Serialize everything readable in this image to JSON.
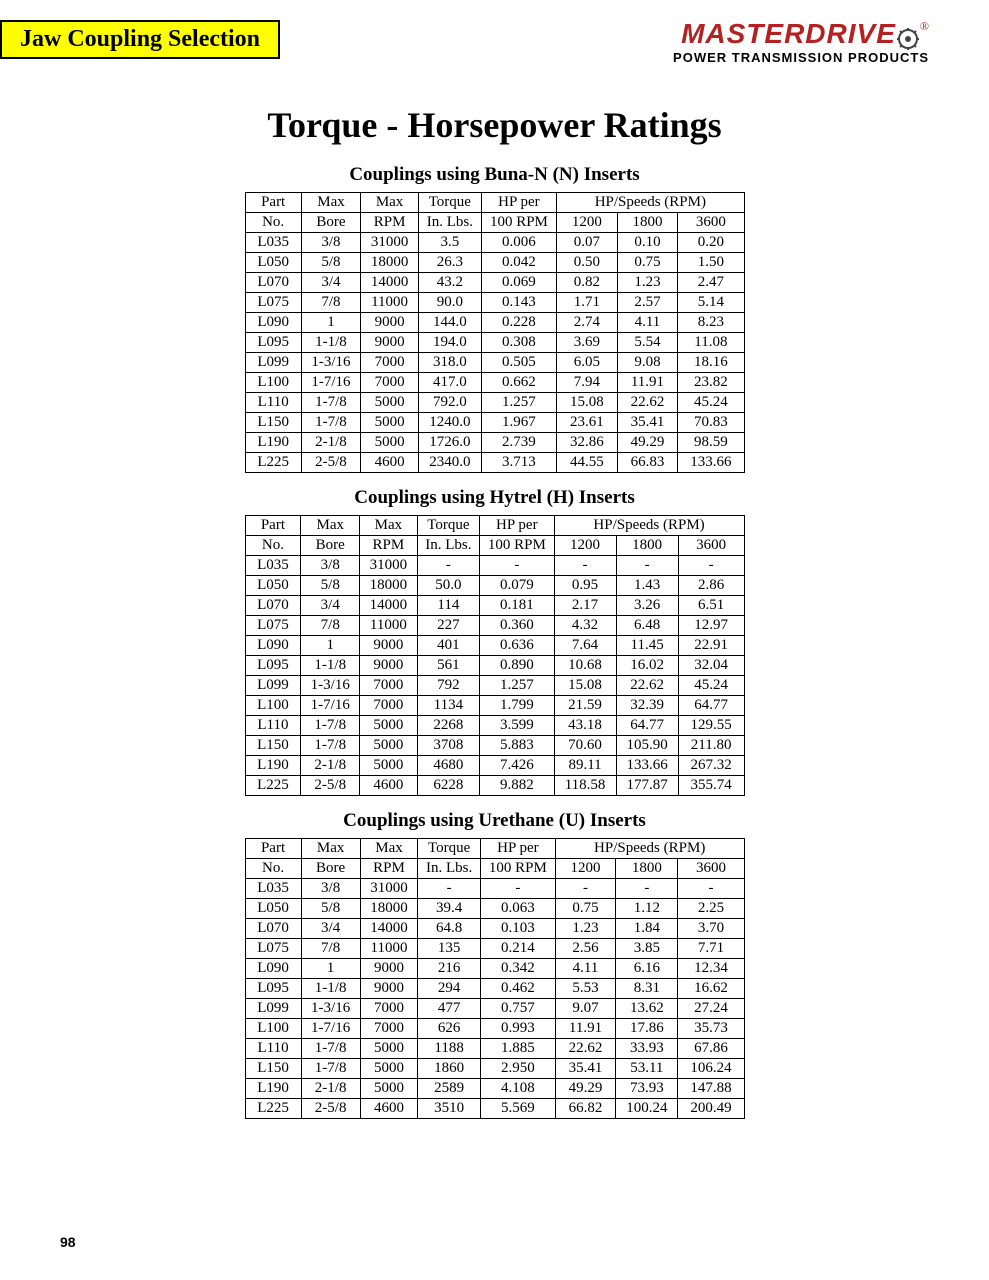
{
  "header": {
    "section_label": "Jaw Coupling Selection",
    "brand_name": "MASTERDRIVE",
    "brand_tagline": "POWER TRANSMISSION PRODUCTS"
  },
  "title": "Torque - Horsepower Ratings",
  "table_headers": {
    "part_top": "Part",
    "part_bot": "No.",
    "bore_top": "Max",
    "bore_bot": "Bore",
    "rpm_top": "Max",
    "rpm_bot": "RPM",
    "torque_top": "Torque",
    "torque_bot": "In. Lbs.",
    "hp_top": "HP per",
    "hp_bot": "100 RPM",
    "speeds_group": "HP/Speeds (RPM)",
    "s1200": "1200",
    "s1800": "1800",
    "s3600": "3600"
  },
  "tables": [
    {
      "title": "Couplings using Buna-N (N) Inserts",
      "rows": [
        [
          "L035",
          "3/8",
          "31000",
          "3.5",
          "0.006",
          "0.07",
          "0.10",
          "0.20"
        ],
        [
          "L050",
          "5/8",
          "18000",
          "26.3",
          "0.042",
          "0.50",
          "0.75",
          "1.50"
        ],
        [
          "L070",
          "3/4",
          "14000",
          "43.2",
          "0.069",
          "0.82",
          "1.23",
          "2.47"
        ],
        [
          "L075",
          "7/8",
          "11000",
          "90.0",
          "0.143",
          "1.71",
          "2.57",
          "5.14"
        ],
        [
          "L090",
          "1",
          "9000",
          "144.0",
          "0.228",
          "2.74",
          "4.11",
          "8.23"
        ],
        [
          "L095",
          "1-1/8",
          "9000",
          "194.0",
          "0.308",
          "3.69",
          "5.54",
          "11.08"
        ],
        [
          "L099",
          "1-3/16",
          "7000",
          "318.0",
          "0.505",
          "6.05",
          "9.08",
          "18.16"
        ],
        [
          "L100",
          "1-7/16",
          "7000",
          "417.0",
          "0.662",
          "7.94",
          "11.91",
          "23.82"
        ],
        [
          "L110",
          "1-7/8",
          "5000",
          "792.0",
          "1.257",
          "15.08",
          "22.62",
          "45.24"
        ],
        [
          "L150",
          "1-7/8",
          "5000",
          "1240.0",
          "1.967",
          "23.61",
          "35.41",
          "70.83"
        ],
        [
          "L190",
          "2-1/8",
          "5000",
          "1726.0",
          "2.739",
          "32.86",
          "49.29",
          "98.59"
        ],
        [
          "L225",
          "2-5/8",
          "4600",
          "2340.0",
          "3.713",
          "44.55",
          "66.83",
          "133.66"
        ]
      ]
    },
    {
      "title": "Couplings using Hytrel (H) Inserts",
      "rows": [
        [
          "L035",
          "3/8",
          "31000",
          "-",
          "-",
          "-",
          "-",
          "-"
        ],
        [
          "L050",
          "5/8",
          "18000",
          "50.0",
          "0.079",
          "0.95",
          "1.43",
          "2.86"
        ],
        [
          "L070",
          "3/4",
          "14000",
          "114",
          "0.181",
          "2.17",
          "3.26",
          "6.51"
        ],
        [
          "L075",
          "7/8",
          "11000",
          "227",
          "0.360",
          "4.32",
          "6.48",
          "12.97"
        ],
        [
          "L090",
          "1",
          "9000",
          "401",
          "0.636",
          "7.64",
          "11.45",
          "22.91"
        ],
        [
          "L095",
          "1-1/8",
          "9000",
          "561",
          "0.890",
          "10.68",
          "16.02",
          "32.04"
        ],
        [
          "L099",
          "1-3/16",
          "7000",
          "792",
          "1.257",
          "15.08",
          "22.62",
          "45.24"
        ],
        [
          "L100",
          "1-7/16",
          "7000",
          "1134",
          "1.799",
          "21.59",
          "32.39",
          "64.77"
        ],
        [
          "L110",
          "1-7/8",
          "5000",
          "2268",
          "3.599",
          "43.18",
          "64.77",
          "129.55"
        ],
        [
          "L150",
          "1-7/8",
          "5000",
          "3708",
          "5.883",
          "70.60",
          "105.90",
          "211.80"
        ],
        [
          "L190",
          "2-1/8",
          "5000",
          "4680",
          "7.426",
          "89.11",
          "133.66",
          "267.32"
        ],
        [
          "L225",
          "2-5/8",
          "4600",
          "6228",
          "9.882",
          "118.58",
          "177.87",
          "355.74"
        ]
      ]
    },
    {
      "title": "Couplings using Urethane (U) Inserts",
      "rows": [
        [
          "L035",
          "3/8",
          "31000",
          "-",
          "-",
          "-",
          "-",
          "-"
        ],
        [
          "L050",
          "5/8",
          "18000",
          "39.4",
          "0.063",
          "0.75",
          "1.12",
          "2.25"
        ],
        [
          "L070",
          "3/4",
          "14000",
          "64.8",
          "0.103",
          "1.23",
          "1.84",
          "3.70"
        ],
        [
          "L075",
          "7/8",
          "11000",
          "135",
          "0.214",
          "2.56",
          "3.85",
          "7.71"
        ],
        [
          "L090",
          "1",
          "9000",
          "216",
          "0.342",
          "4.11",
          "6.16",
          "12.34"
        ],
        [
          "L095",
          "1-1/8",
          "9000",
          "294",
          "0.462",
          "5.53",
          "8.31",
          "16.62"
        ],
        [
          "L099",
          "1-3/16",
          "7000",
          "477",
          "0.757",
          "9.07",
          "13.62",
          "27.24"
        ],
        [
          "L100",
          "1-7/16",
          "7000",
          "626",
          "0.993",
          "11.91",
          "17.86",
          "35.73"
        ],
        [
          "L110",
          "1-7/8",
          "5000",
          "1188",
          "1.885",
          "22.62",
          "33.93",
          "67.86"
        ],
        [
          "L150",
          "1-7/8",
          "5000",
          "1860",
          "2.950",
          "35.41",
          "53.11",
          "106.24"
        ],
        [
          "L190",
          "2-1/8",
          "5000",
          "2589",
          "4.108",
          "49.29",
          "73.93",
          "147.88"
        ],
        [
          "L225",
          "2-5/8",
          "4600",
          "3510",
          "5.569",
          "66.82",
          "100.24",
          "200.49"
        ]
      ]
    }
  ],
  "page_number": "98",
  "colors": {
    "tab_bg": "#ffff00",
    "brand_red": "#B22222"
  }
}
